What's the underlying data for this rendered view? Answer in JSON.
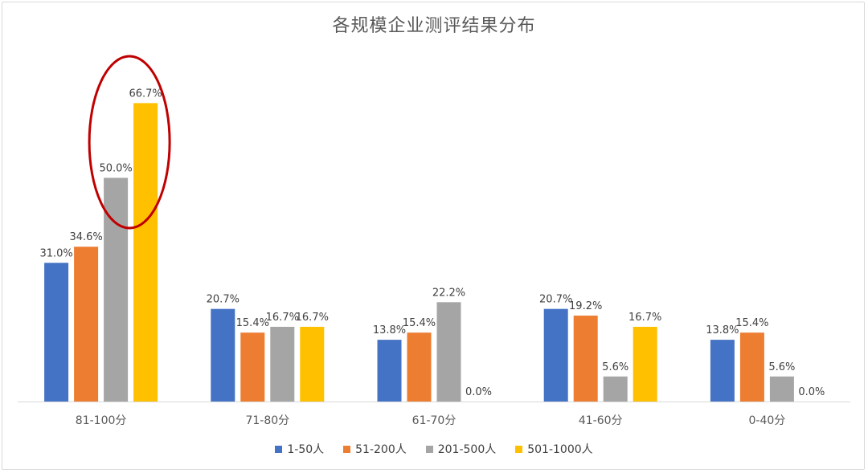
{
  "chart_data": {
    "type": "bar",
    "title": "各规模企业测评结果分布",
    "categories": [
      "81-100分",
      "71-80分",
      "61-70分",
      "41-60分",
      "0-40分"
    ],
    "series": [
      {
        "name": "1-50人",
        "values": [
          31.0,
          20.7,
          13.8,
          20.7,
          13.8
        ],
        "color": "#4472C4"
      },
      {
        "name": "51-200人",
        "values": [
          34.6,
          15.4,
          15.4,
          19.2,
          15.4
        ],
        "color": "#ED7D31"
      },
      {
        "name": "201-500人",
        "values": [
          50.0,
          16.7,
          22.2,
          5.6,
          5.6
        ],
        "color": "#A5A5A5"
      },
      {
        "name": "501-1000人",
        "values": [
          66.7,
          16.7,
          0.0,
          16.7,
          0.0
        ],
        "color": "#FFC000"
      }
    ],
    "value_format": "percent_1dp",
    "ylim": [
      0,
      70
    ],
    "grid": false,
    "legend": "bottom",
    "annotation": {
      "shape": "ellipse",
      "color": "#C00000",
      "highlights": [
        "81-100分 / 501-1000人"
      ]
    }
  }
}
